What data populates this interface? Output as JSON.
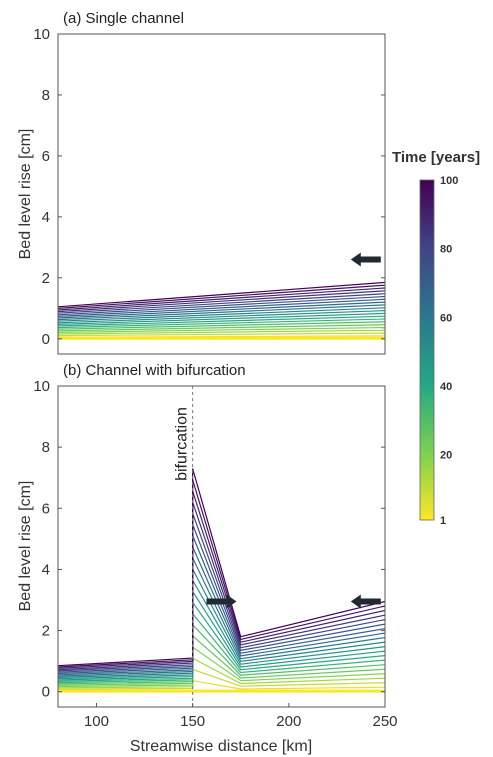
{
  "chart_data": [
    {
      "type": "line",
      "title": "(a) Single channel",
      "xlabel": "",
      "ylabel": "Bed level rise [cm]",
      "xlim": [
        80,
        250
      ],
      "ylim": [
        -0.5,
        10
      ],
      "xticks": [],
      "yticks": [
        0,
        2,
        4,
        6,
        8,
        10
      ],
      "curves": {
        "count": 20,
        "time_years": [
          5,
          10,
          15,
          20,
          25,
          30,
          35,
          40,
          45,
          50,
          55,
          60,
          65,
          70,
          75,
          80,
          85,
          90,
          95,
          100
        ],
        "x": [
          80,
          250
        ],
        "y_at_t100": [
          1.05,
          1.85
        ]
      },
      "arrows": [
        {
          "x": 240,
          "y": 2.6,
          "direction": "left"
        }
      ]
    },
    {
      "type": "line",
      "title": "(b) Channel with bifurcation",
      "xlabel": "Streamwise distance [km]",
      "ylabel": "Bed level rise [cm]",
      "xlim": [
        80,
        250
      ],
      "ylim": [
        -0.5,
        10
      ],
      "xticks": [
        100,
        150,
        200,
        250
      ],
      "yticks": [
        0,
        2,
        4,
        6,
        8,
        10
      ],
      "bifurcation_x": 150,
      "annotation": "bifurcation",
      "curves": {
        "count": 20,
        "time_years": [
          5,
          10,
          15,
          20,
          25,
          30,
          35,
          40,
          45,
          50,
          55,
          60,
          65,
          70,
          75,
          80,
          85,
          90,
          95,
          100
        ],
        "x": [
          80,
          150,
          150,
          175,
          250
        ],
        "y_at_t100": [
          0.85,
          1.1,
          7.3,
          1.8,
          2.95
        ]
      },
      "arrows": [
        {
          "x": 165,
          "y": 2.95,
          "direction": "right"
        },
        {
          "x": 240,
          "y": 2.95,
          "direction": "left"
        }
      ]
    }
  ],
  "colorbar": {
    "title": "Time [years]",
    "min": 1,
    "max": 100,
    "ticks": [
      1,
      20,
      40,
      60,
      80,
      100
    ],
    "colormap": "viridis",
    "colors": [
      "#440154",
      "#414487",
      "#2a788e",
      "#22a884",
      "#7ad151",
      "#fde725"
    ]
  }
}
